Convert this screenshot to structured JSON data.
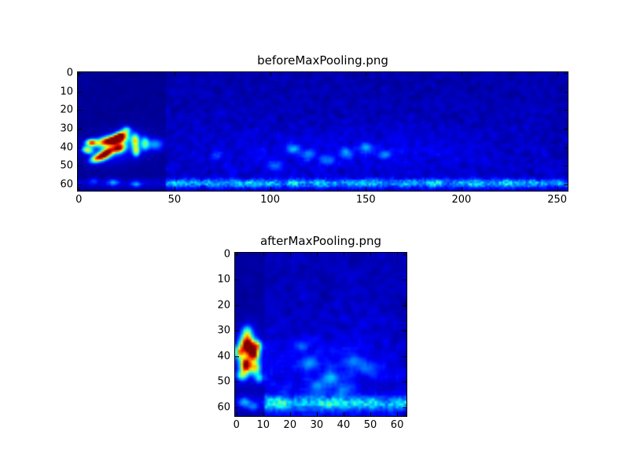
{
  "figure": {
    "colors": {
      "background": "#ffffff",
      "axis": "#000000",
      "text": "#000000",
      "colormap_low": "#000080",
      "colormap_high": "#800000"
    }
  },
  "chart_data": [
    {
      "type": "heatmap",
      "title": "beforeMaxPooling.png",
      "x_ticks": [
        0,
        50,
        100,
        150,
        200,
        250
      ],
      "y_ticks": [
        0,
        10,
        20,
        30,
        40,
        50,
        60
      ],
      "x_range": [
        -0.5,
        255.5
      ],
      "y_range": [
        63.5,
        -0.5
      ],
      "colormap": "jet",
      "grid": {
        "cols": 256,
        "rows": 64
      },
      "texture": {
        "seed": 12,
        "base": 0.02,
        "amp": 0.16
      },
      "features": {
        "dark_block": {
          "x0": 0,
          "x1": 46,
          "base": 0.01,
          "amp": 0.05
        },
        "bottom_band": {
          "y_center": 59.5,
          "y_sigma": 1.6,
          "amp": 0.5,
          "in_block_factor": 0.28
        },
        "hotspots": [
          {
            "x": 20,
            "y": 40,
            "sx": 9,
            "sy": 5,
            "rot": -15,
            "amp": 0.18
          },
          {
            "x": 17,
            "y": 36.5,
            "sx": 5,
            "sy": 1.7,
            "rot": -10,
            "amp": 1.05
          },
          {
            "x": 21.5,
            "y": 34,
            "sx": 2.6,
            "sy": 1.5,
            "rot": -30,
            "amp": 0.85
          },
          {
            "x": 14,
            "y": 43.5,
            "sx": 3.4,
            "sy": 1.6,
            "rot": -35,
            "amp": 1.0
          },
          {
            "x": 21,
            "y": 40.5,
            "sx": 2.3,
            "sy": 1.5,
            "rot": -20,
            "amp": 0.8
          },
          {
            "x": 6.5,
            "y": 37.5,
            "sx": 2.0,
            "sy": 1.3,
            "rot": 0,
            "amp": 0.7
          },
          {
            "x": 4.5,
            "y": 41.5,
            "sx": 2.0,
            "sy": 1.3,
            "rot": 15,
            "amp": 0.55
          },
          {
            "x": 9,
            "y": 46,
            "sx": 2.4,
            "sy": 1.3,
            "rot": -25,
            "amp": 0.5
          },
          {
            "x": 29.5,
            "y": 36.5,
            "sx": 1.3,
            "sy": 2.4,
            "rot": 0,
            "amp": 0.55
          },
          {
            "x": 30,
            "y": 42,
            "sx": 1.3,
            "sy": 2.0,
            "rot": 0,
            "amp": 0.5
          },
          {
            "x": 34.5,
            "y": 38,
            "sx": 1.5,
            "sy": 2.4,
            "rot": 0,
            "amp": 0.4
          },
          {
            "x": 40,
            "y": 38.5,
            "sx": 3.0,
            "sy": 2.2,
            "rot": 0,
            "amp": 0.25
          },
          {
            "x": 25,
            "y": 30.5,
            "sx": 1.6,
            "sy": 1.3,
            "rot": 0,
            "amp": 0.3
          },
          {
            "x": 112,
            "y": 41,
            "sx": 2.2,
            "sy": 1.8,
            "rot": 0,
            "amp": 0.2
          },
          {
            "x": 120,
            "y": 44,
            "sx": 2.2,
            "sy": 1.8,
            "rot": 0,
            "amp": 0.16
          },
          {
            "x": 140,
            "y": 43,
            "sx": 2.2,
            "sy": 1.8,
            "rot": 0,
            "amp": 0.18
          },
          {
            "x": 150,
            "y": 40,
            "sx": 2.2,
            "sy": 1.8,
            "rot": 0,
            "amp": 0.2
          },
          {
            "x": 160,
            "y": 44,
            "sx": 2.2,
            "sy": 1.8,
            "rot": 0,
            "amp": 0.16
          },
          {
            "x": 130,
            "y": 47,
            "sx": 2.2,
            "sy": 1.8,
            "rot": 0,
            "amp": 0.15
          },
          {
            "x": 103,
            "y": 50,
            "sx": 2.5,
            "sy": 2.0,
            "rot": 0,
            "amp": 0.15
          },
          {
            "x": 72,
            "y": 44,
            "sx": 2.2,
            "sy": 1.8,
            "rot": 0,
            "amp": 0.13
          },
          {
            "x": 140,
            "y": 43,
            "sx": 55,
            "sy": 8,
            "rot": 0,
            "amp": 0.05
          },
          {
            "x": 18,
            "y": 59,
            "sx": 2.0,
            "sy": 1.3,
            "rot": 0,
            "amp": 0.2
          },
          {
            "x": 30,
            "y": 60,
            "sx": 1.8,
            "sy": 1.2,
            "rot": 0,
            "amp": 0.22
          },
          {
            "x": 8,
            "y": 58,
            "sx": 1.5,
            "sy": 1.2,
            "rot": 0,
            "amp": 0.13
          }
        ]
      }
    },
    {
      "type": "heatmap",
      "title": "afterMaxPooling.png",
      "x_ticks": [
        0,
        10,
        20,
        30,
        40,
        50,
        60
      ],
      "y_ticks": [
        0,
        10,
        20,
        30,
        40,
        50,
        60
      ],
      "x_range": [
        -0.5,
        63.5
      ],
      "y_range": [
        63.5,
        -0.5
      ],
      "colormap": "jet",
      "grid": {
        "cols": 64,
        "rows": 64
      },
      "texture": {
        "seed": 99,
        "base": 0.025,
        "amp": 0.18
      },
      "features": {
        "dark_block": {
          "x0": 0,
          "x1": 11,
          "base": 0.015,
          "amp": 0.06
        },
        "bottom_band": {
          "y_center": 58.5,
          "y_sigma": 1.9,
          "amp": 0.55,
          "in_block_factor": 0.3
        },
        "hotspots": [
          {
            "x": 4.5,
            "y": 39.5,
            "sx": 3.4,
            "sy": 6.5,
            "rot": 0,
            "amp": 0.2
          },
          {
            "x": 4.3,
            "y": 36,
            "sx": 1.7,
            "sy": 2.3,
            "rot": -15,
            "amp": 1.05
          },
          {
            "x": 3.5,
            "y": 43.5,
            "sx": 1.3,
            "sy": 1.9,
            "rot": 0,
            "amp": 0.95
          },
          {
            "x": 6.5,
            "y": 39.5,
            "sx": 1.3,
            "sy": 1.6,
            "rot": 0,
            "amp": 0.7
          },
          {
            "x": 1.2,
            "y": 38.5,
            "sx": 1.1,
            "sy": 1.7,
            "rot": 0,
            "amp": 0.55
          },
          {
            "x": 7.8,
            "y": 36,
            "sx": 1.1,
            "sy": 1.4,
            "rot": 0,
            "amp": 0.5
          },
          {
            "x": 7,
            "y": 44.5,
            "sx": 1.3,
            "sy": 1.7,
            "rot": 0,
            "amp": 0.5
          },
          {
            "x": 2,
            "y": 47.5,
            "sx": 1.3,
            "sy": 1.3,
            "rot": 0,
            "amp": 0.4
          },
          {
            "x": 4,
            "y": 31,
            "sx": 1.3,
            "sy": 2.0,
            "rot": 0,
            "amp": 0.4
          },
          {
            "x": 8.5,
            "y": 48.5,
            "sx": 1.1,
            "sy": 1.3,
            "rot": 0,
            "amp": 0.28
          },
          {
            "x": 27,
            "y": 43,
            "sx": 2.0,
            "sy": 1.8,
            "rot": 0,
            "amp": 0.18
          },
          {
            "x": 35,
            "y": 49,
            "sx": 2.2,
            "sy": 1.8,
            "rot": 0,
            "amp": 0.18
          },
          {
            "x": 44,
            "y": 42,
            "sx": 2.0,
            "sy": 1.6,
            "rot": 0,
            "amp": 0.16
          },
          {
            "x": 30,
            "y": 52,
            "sx": 2.0,
            "sy": 1.6,
            "rot": 0,
            "amp": 0.16
          },
          {
            "x": 24,
            "y": 36,
            "sx": 1.8,
            "sy": 1.5,
            "rot": 0,
            "amp": 0.13
          },
          {
            "x": 40,
            "y": 53,
            "sx": 2.0,
            "sy": 1.6,
            "rot": 0,
            "amp": 0.15
          },
          {
            "x": 50,
            "y": 45,
            "sx": 2.0,
            "sy": 1.8,
            "rot": 0,
            "amp": 0.11
          },
          {
            "x": 34,
            "y": 45,
            "sx": 16,
            "sy": 9,
            "rot": 0,
            "amp": 0.07
          },
          {
            "x": 3,
            "y": 58,
            "sx": 1.5,
            "sy": 1.3,
            "rot": 0,
            "amp": 0.22
          },
          {
            "x": 6,
            "y": 60,
            "sx": 1.3,
            "sy": 1.1,
            "rot": 0,
            "amp": 0.18
          }
        ]
      }
    }
  ]
}
